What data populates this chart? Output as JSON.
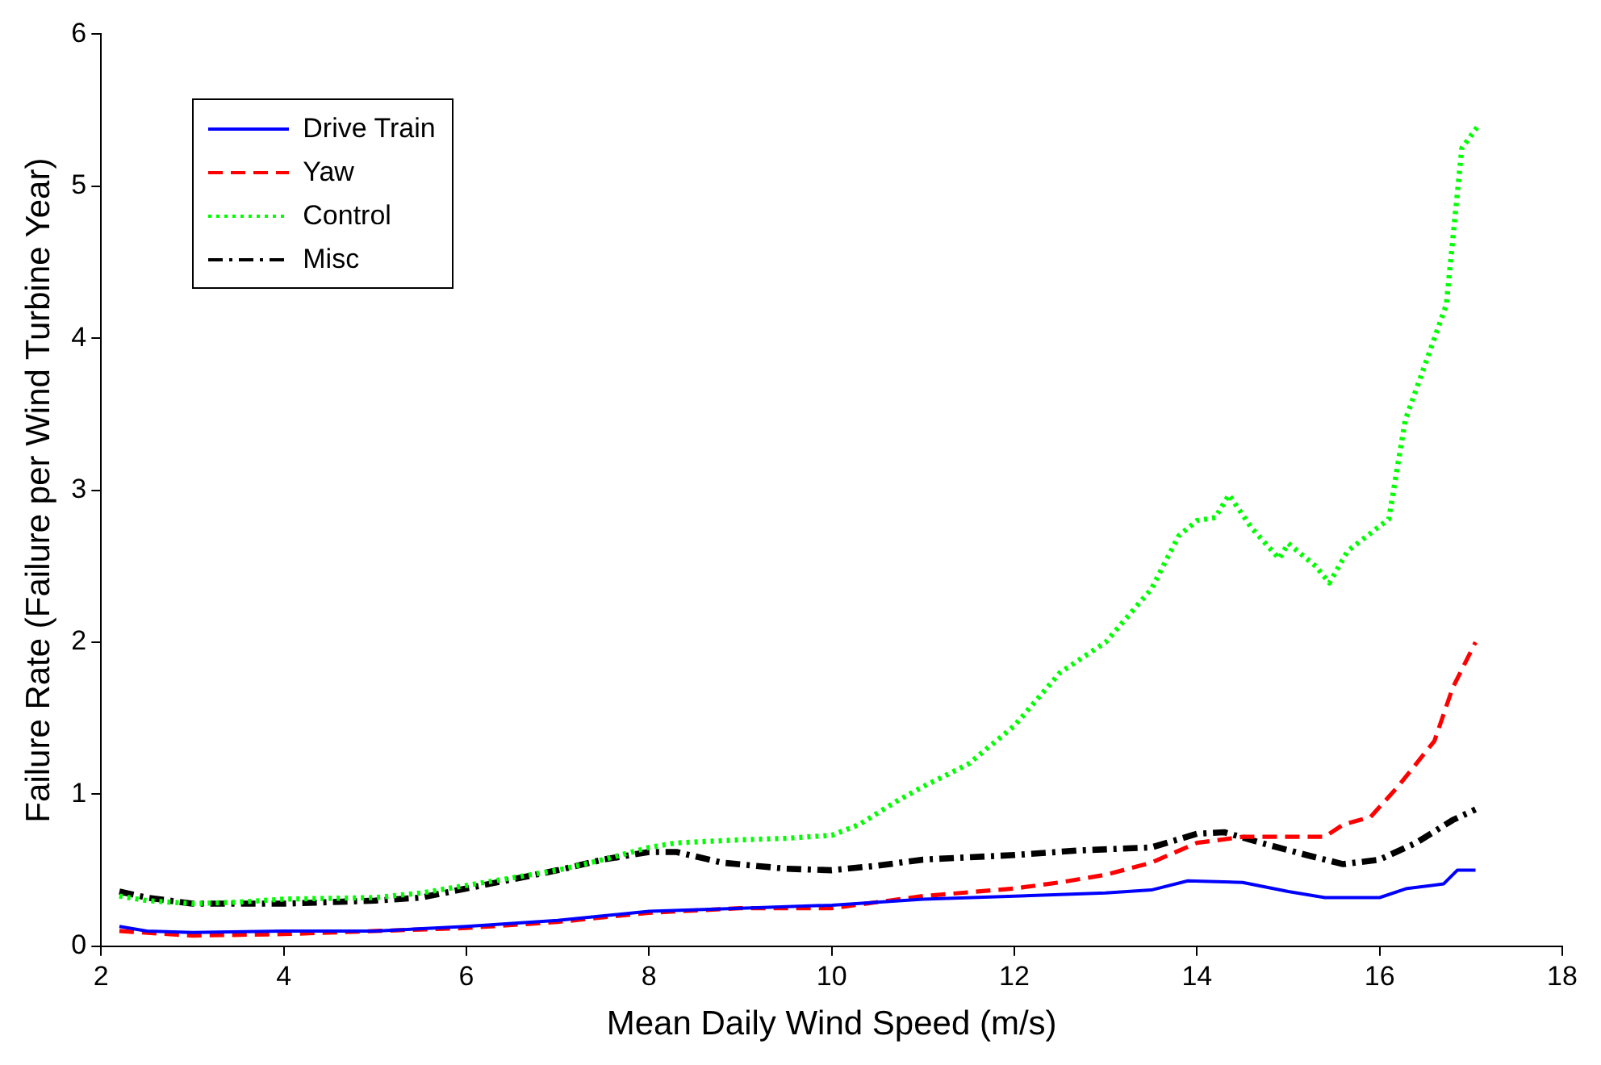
{
  "chart_data": {
    "type": "line",
    "xlabel": "Mean Daily Wind Speed (m/s)",
    "ylabel": "Failure Rate (Failure per Wind Turbine Year)",
    "xlim": [
      2,
      18
    ],
    "xticks": [
      2,
      4,
      6,
      8,
      10,
      12,
      14,
      16,
      18
    ],
    "ylim": [
      0,
      6
    ],
    "yticks": [
      0,
      1,
      2,
      3,
      4,
      5,
      6
    ],
    "grid": false,
    "legend": "top left",
    "marker": "none",
    "series": [
      {
        "name": "Drive Train",
        "color": "#0000ff",
        "line_style": "solid",
        "x": [
          2.2,
          2.5,
          3,
          4,
          5,
          6,
          7,
          8,
          9,
          10,
          11,
          12,
          13,
          13.5,
          13.9,
          14.5,
          15,
          15.4,
          16,
          16.3,
          16.7,
          16.85,
          17.05
        ],
        "values": [
          0.13,
          0.1,
          0.09,
          0.1,
          0.1,
          0.13,
          0.17,
          0.23,
          0.25,
          0.27,
          0.31,
          0.33,
          0.35,
          0.37,
          0.43,
          0.42,
          0.36,
          0.32,
          0.32,
          0.38,
          0.41,
          0.5,
          0.5
        ]
      },
      {
        "name": "Yaw",
        "color": "#ff0000",
        "line_style": "dashed",
        "x": [
          2.2,
          3,
          4,
          5,
          6,
          7,
          8,
          9,
          10,
          11,
          12,
          12.5,
          13,
          13.5,
          14,
          14.5,
          15,
          15.4,
          15.6,
          15.9,
          16.2,
          16.6,
          16.8,
          17.05
        ],
        "values": [
          0.1,
          0.07,
          0.08,
          0.1,
          0.12,
          0.16,
          0.22,
          0.25,
          0.25,
          0.33,
          0.38,
          0.42,
          0.47,
          0.55,
          0.68,
          0.72,
          0.72,
          0.72,
          0.8,
          0.85,
          1.05,
          1.35,
          1.7,
          2.0
        ]
      },
      {
        "name": "Control",
        "color": "#00ff00",
        "line_style": "dotted",
        "x": [
          2.2,
          2.5,
          3,
          3.5,
          4,
          5,
          5.5,
          6,
          6.5,
          7,
          7.5,
          8,
          8.3,
          9,
          9.5,
          10,
          10.3,
          10.7,
          11,
          11.5,
          12,
          12.5,
          13,
          13.5,
          13.8,
          14,
          14.2,
          14.35,
          14.6,
          14.9,
          15,
          15.3,
          15.45,
          15.65,
          16.1,
          16.28,
          16.73,
          16.9,
          17.07
        ],
        "values": [
          0.33,
          0.3,
          0.28,
          0.29,
          0.31,
          0.32,
          0.35,
          0.4,
          0.45,
          0.5,
          0.57,
          0.65,
          0.68,
          0.7,
          0.71,
          0.73,
          0.8,
          0.95,
          1.05,
          1.2,
          1.45,
          1.8,
          2.0,
          2.35,
          2.7,
          2.8,
          2.82,
          2.97,
          2.75,
          2.55,
          2.65,
          2.5,
          2.39,
          2.6,
          2.81,
          3.46,
          4.22,
          5.25,
          5.39
        ]
      },
      {
        "name": "Misc",
        "color": "#000000",
        "line_style": "dashdot",
        "x": [
          2.2,
          2.5,
          3,
          4,
          5,
          5.5,
          6,
          7,
          7.5,
          8,
          8.3,
          8.8,
          9.5,
          10,
          10.5,
          11,
          12,
          12.7,
          13.5,
          14,
          14.3,
          14.7,
          15.2,
          15.6,
          16,
          16.4,
          16.8,
          17.05
        ],
        "values": [
          0.36,
          0.32,
          0.28,
          0.28,
          0.3,
          0.32,
          0.38,
          0.5,
          0.57,
          0.62,
          0.62,
          0.55,
          0.51,
          0.5,
          0.53,
          0.57,
          0.6,
          0.63,
          0.65,
          0.74,
          0.75,
          0.68,
          0.6,
          0.54,
          0.57,
          0.68,
          0.83,
          0.9
        ]
      }
    ]
  }
}
